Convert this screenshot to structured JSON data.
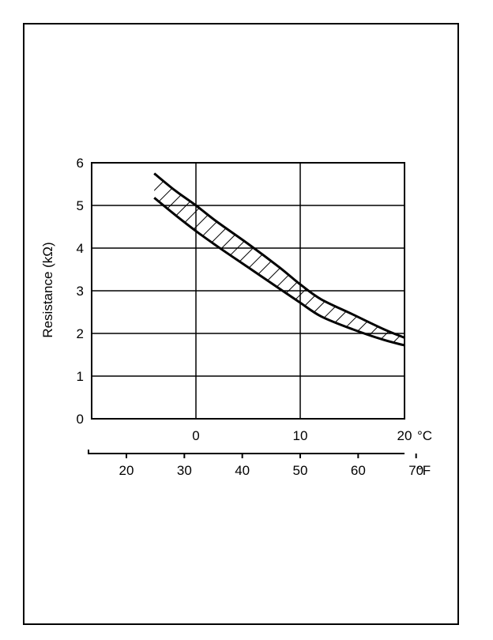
{
  "chart_data": {
    "type": "area",
    "ylabel": "Resistance (kΩ)",
    "ylim": [
      0,
      6
    ],
    "yticks": [
      0,
      1,
      2,
      3,
      4,
      5,
      6
    ],
    "xlim_c": [
      -10,
      20
    ],
    "xticks_c": [
      0,
      10,
      20
    ],
    "xunit_c": "°C",
    "xticks_f": [
      20,
      30,
      40,
      50,
      60,
      70
    ],
    "xunit_f": "°F",
    "grid": true,
    "band": {
      "upper": {
        "x": [
          -4,
          -2,
          0,
          2,
          5,
          8,
          10,
          12,
          15,
          18,
          20
        ],
        "y": [
          5.75,
          5.35,
          5.0,
          4.62,
          4.1,
          3.55,
          3.15,
          2.8,
          2.45,
          2.1,
          1.9
        ]
      },
      "lower": {
        "x": [
          -4,
          -2,
          0,
          2,
          5,
          8,
          10,
          12,
          15,
          18,
          20
        ],
        "y": [
          5.18,
          4.78,
          4.4,
          4.05,
          3.55,
          3.05,
          2.72,
          2.4,
          2.1,
          1.85,
          1.72
        ]
      }
    }
  }
}
